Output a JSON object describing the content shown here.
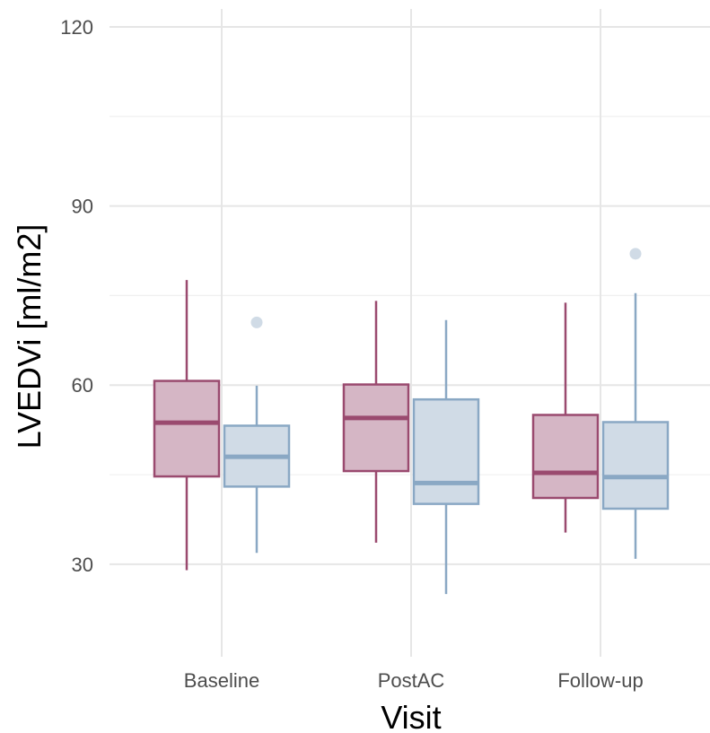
{
  "chart_data": {
    "type": "boxplot",
    "xlabel": "Visit",
    "ylabel": "LVEDVi [ml/m2]",
    "ylim": [
      14.5,
      123
    ],
    "y_ticks": [
      30,
      60,
      90,
      120
    ],
    "grid": true,
    "categories": [
      "Baseline",
      "PostAC",
      "Follow-up"
    ],
    "series": [
      {
        "color": "#9a4a6f",
        "fill": "#d5b6c5",
        "boxes": [
          {
            "min": 29.0,
            "q1": 44.7,
            "median": 53.7,
            "q3": 60.7,
            "max": 77.6,
            "outliers": []
          },
          {
            "min": 33.6,
            "q1": 45.6,
            "median": 54.5,
            "q3": 60.1,
            "max": 74.1,
            "outliers": []
          },
          {
            "min": 35.3,
            "q1": 41.1,
            "median": 45.3,
            "q3": 55.0,
            "max": 73.8,
            "outliers": []
          }
        ]
      },
      {
        "color": "#8aa8c4",
        "fill": "#d0dbe6",
        "boxes": [
          {
            "min": 31.9,
            "q1": 43.0,
            "median": 48.0,
            "q3": 53.2,
            "max": 59.9,
            "outliers": [
              70.5
            ]
          },
          {
            "min": 25.0,
            "q1": 40.1,
            "median": 43.6,
            "q3": 57.6,
            "max": 70.9,
            "outliers": []
          },
          {
            "min": 30.9,
            "q1": 39.3,
            "median": 44.6,
            "q3": 53.8,
            "max": 75.4,
            "outliers": [
              82.0
            ]
          }
        ]
      }
    ]
  }
}
